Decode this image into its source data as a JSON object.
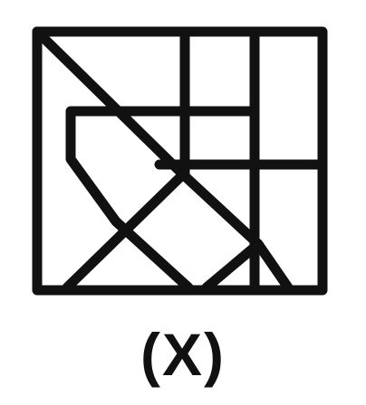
{
  "figure": {
    "caption": "(X)",
    "stroke_color": "#111111",
    "background_color": "#ffffff"
  }
}
